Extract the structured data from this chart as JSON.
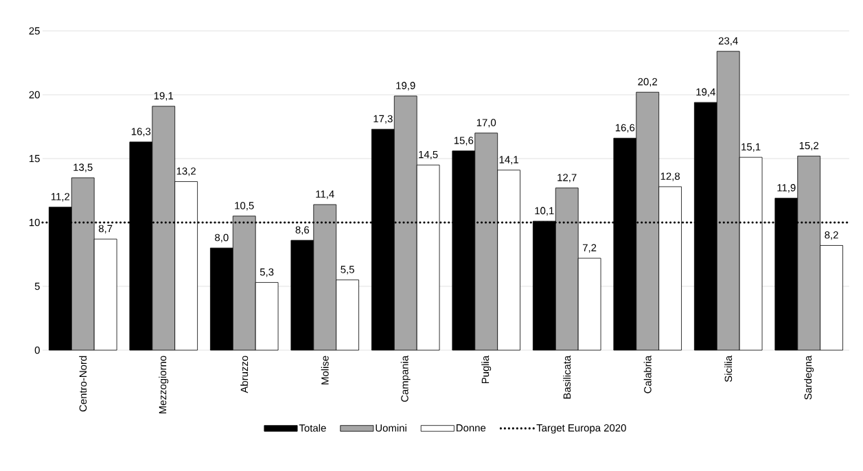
{
  "chart_data": {
    "type": "bar",
    "categories": [
      "Centro-Nord",
      "Mezzogiorno",
      "Abruzzo",
      "Molise",
      "Campania",
      "Puglia",
      "Basilicata",
      "Calabria",
      "Sicilia",
      "Sardegna"
    ],
    "series": [
      {
        "name": "Totale",
        "color": "#000000",
        "values": [
          11.2,
          16.3,
          8.0,
          8.6,
          17.3,
          15.6,
          10.1,
          16.6,
          19.4,
          11.9
        ],
        "value_labels": [
          "11,2",
          "16,3",
          "8,0",
          "8,6",
          "17,3",
          "15,6",
          "10,1",
          "16,6",
          "19,4",
          "11,9"
        ]
      },
      {
        "name": "Uomini",
        "color": "#a6a6a6",
        "values": [
          13.5,
          19.1,
          10.5,
          11.4,
          19.9,
          17.0,
          12.7,
          20.2,
          23.4,
          15.2
        ],
        "value_labels": [
          "13,5",
          "19,1",
          "10,5",
          "11,4",
          "19,9",
          "17,0",
          "12,7",
          "20,2",
          "23,4",
          "15,2"
        ]
      },
      {
        "name": "Donne",
        "color": "#ffffff",
        "values": [
          8.7,
          13.2,
          5.3,
          5.5,
          14.5,
          14.1,
          7.2,
          12.8,
          15.1,
          8.2
        ],
        "value_labels": [
          "8,7",
          "13,2",
          "5,3",
          "5,5",
          "14,5",
          "14,1",
          "7,2",
          "12,8",
          "15,1",
          "8,2"
        ]
      }
    ],
    "ref_lines": [
      {
        "axis": "y",
        "value": 10,
        "label": "Target Europa 2020",
        "line_style": "dotted",
        "color": "#000000"
      }
    ],
    "ylim": [
      0,
      25
    ],
    "yticks": [
      0,
      5,
      10,
      15,
      20,
      25
    ],
    "grid": "y",
    "legend": "bottom"
  }
}
